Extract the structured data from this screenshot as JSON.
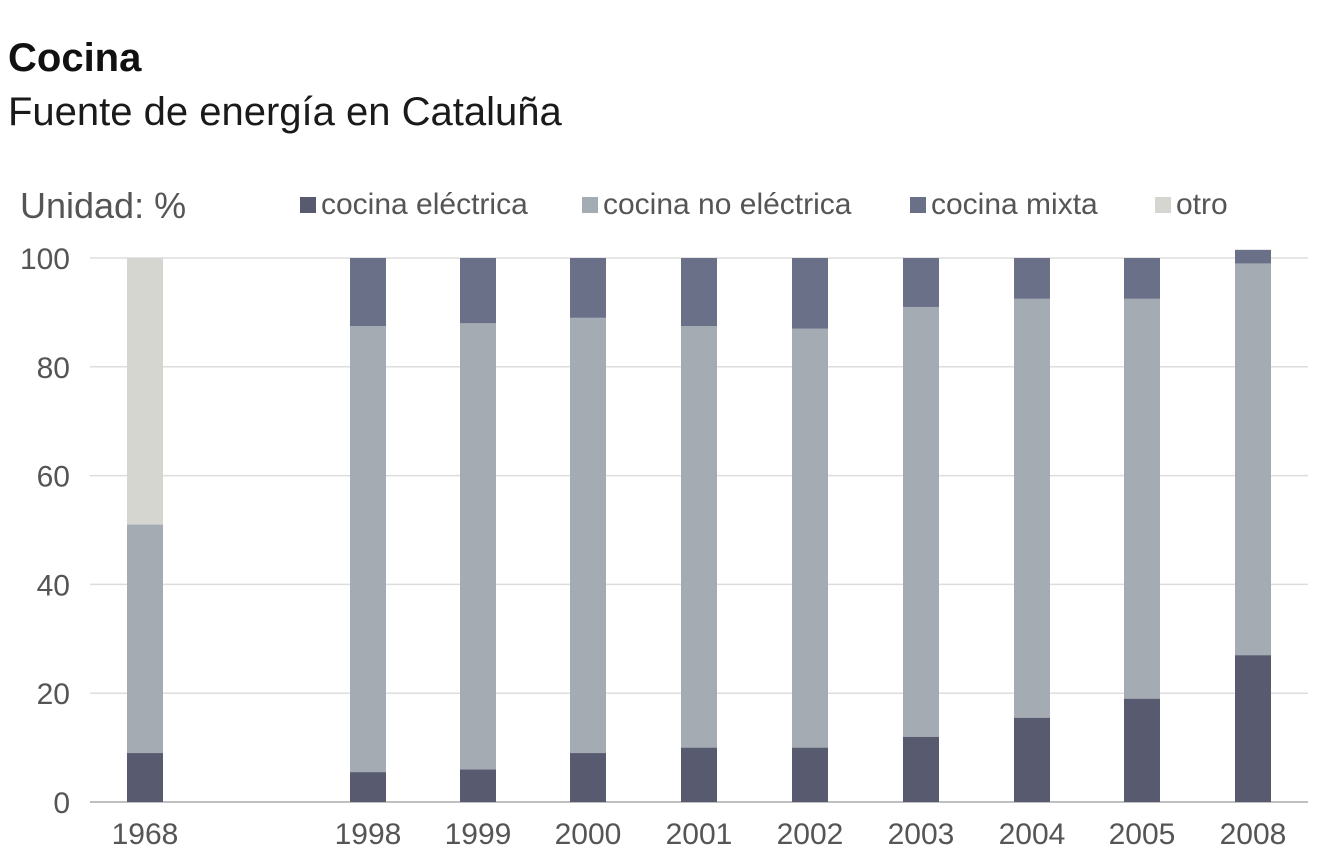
{
  "title": "Cocina",
  "subtitle": "Fuente de energía en Cataluña",
  "chart_data": {
    "type": "bar",
    "stacked": true,
    "unit_label": "Unidad: %",
    "categories": [
      "1968",
      "1998",
      "1999",
      "2000",
      "2001",
      "2002",
      "2003",
      "2004",
      "2005",
      "2008"
    ],
    "series": [
      {
        "name": "cocina eléctrica",
        "color": "#585b70",
        "values": [
          9,
          5.5,
          6,
          9,
          10,
          10,
          12,
          15.5,
          19,
          27
        ]
      },
      {
        "name": "cocina no eléctrica",
        "color": "#a4abb3",
        "values": [
          42,
          82,
          82,
          80,
          77.5,
          77,
          79,
          77,
          73.5,
          72
        ]
      },
      {
        "name": "cocina mixta",
        "color": "#6b7089",
        "values": [
          0,
          12.5,
          12,
          11,
          12.5,
          13,
          9,
          7.5,
          7.5,
          2.5
        ]
      },
      {
        "name": "otro",
        "color": "#d6d6d1",
        "values": [
          49,
          0,
          0,
          0,
          0,
          0,
          0,
          0,
          0,
          0
        ]
      }
    ],
    "ylim": [
      0,
      100
    ],
    "yticks": [
      "0",
      "20",
      "40",
      "60",
      "80",
      "100"
    ],
    "legend_position": "top",
    "grid": true
  }
}
